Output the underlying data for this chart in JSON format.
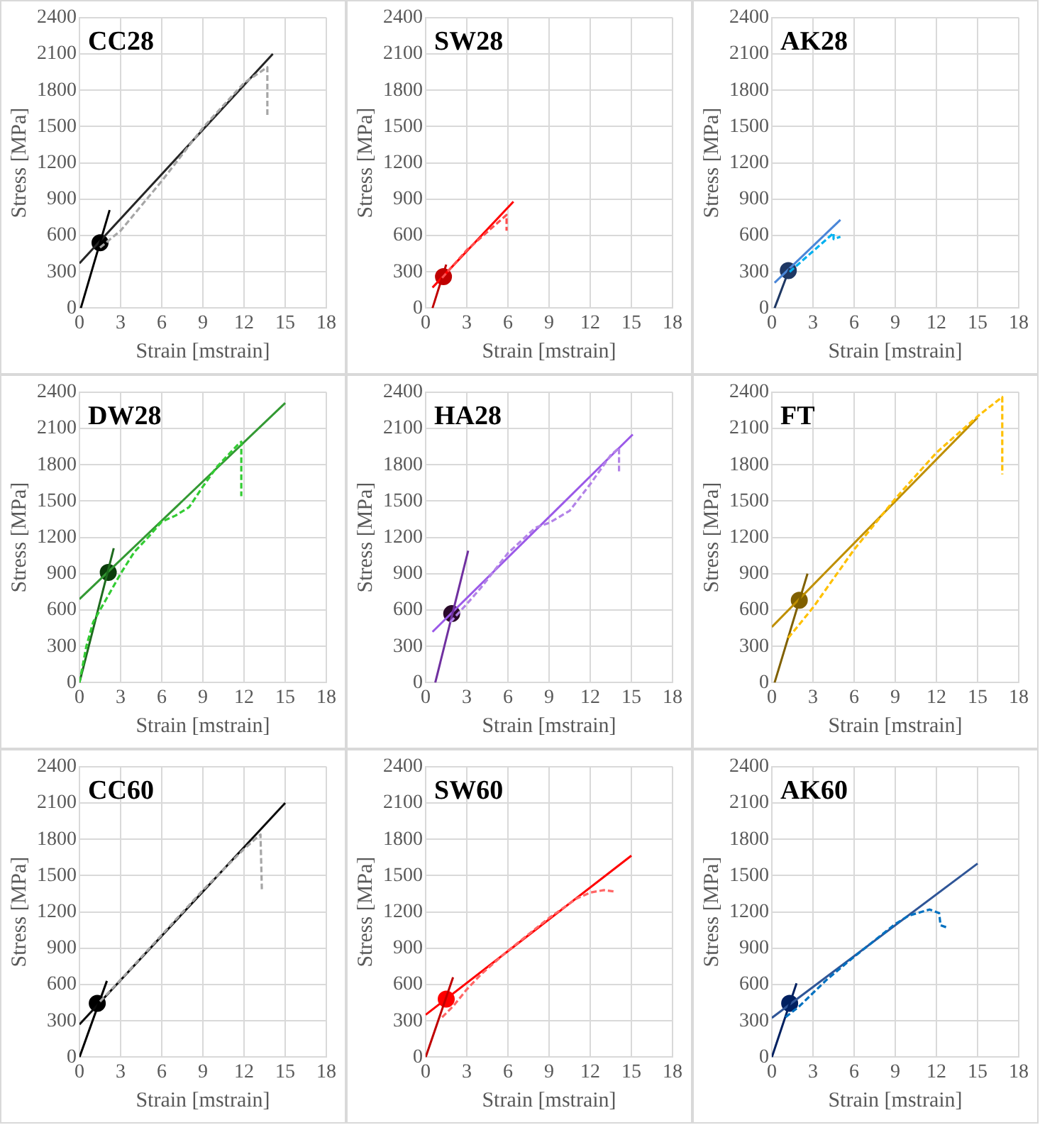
{
  "chart_data": [
    {
      "type": "line",
      "title": "CC28",
      "xlabel": "Strain [mstrain]",
      "ylabel": "Stress [MPa]",
      "xlim": [
        0,
        18
      ],
      "xticks": [
        0,
        3,
        6,
        9,
        12,
        15,
        18
      ],
      "ylim": [
        0,
        2400
      ],
      "yticks": [
        0,
        300,
        600,
        900,
        1200,
        1500,
        1800,
        2100,
        2400
      ],
      "grid": true,
      "legend": false,
      "series": [
        {
          "type": "line",
          "line_style": "dashed",
          "marker": "none",
          "color": "#a6a6a6",
          "x": [
            1.5,
            3,
            6,
            9,
            12,
            13.7,
            13.7
          ],
          "values": [
            500,
            640,
            1050,
            1490,
            1860,
            1990,
            1580
          ]
        },
        {
          "type": "line",
          "line_style": "solid",
          "marker": "none",
          "color": "#000000",
          "x": [
            0.1,
            2.2
          ],
          "values": [
            0,
            810
          ]
        },
        {
          "type": "line",
          "line_style": "solid",
          "marker": "none",
          "color": "#262626",
          "x": [
            0,
            14.1
          ],
          "values": [
            370,
            2100
          ]
        },
        {
          "type": "scatter",
          "marker": "circle",
          "color": "#000000",
          "x": [
            1.5
          ],
          "values": [
            540
          ]
        }
      ]
    },
    {
      "type": "line",
      "title": "SW28",
      "xlabel": "Strain [mstrain]",
      "ylabel": "Stress [MPa]",
      "xlim": [
        0,
        18
      ],
      "xticks": [
        0,
        3,
        6,
        9,
        12,
        15,
        18
      ],
      "ylim": [
        0,
        2400
      ],
      "yticks": [
        0,
        300,
        600,
        900,
        1200,
        1500,
        1800,
        2100,
        2400
      ],
      "grid": true,
      "legend": false,
      "series": [
        {
          "type": "line",
          "line_style": "dashed",
          "marker": "none",
          "color": "#ff5050",
          "x": [
            1.2,
            3,
            5.9,
            5.9
          ],
          "values": [
            250,
            480,
            770,
            640
          ]
        },
        {
          "type": "line",
          "line_style": "solid",
          "marker": "none",
          "color": "#c00000",
          "x": [
            0.5,
            1.5
          ],
          "values": [
            0,
            360
          ]
        },
        {
          "type": "line",
          "line_style": "solid",
          "marker": "none",
          "color": "#ff0000",
          "x": [
            0.5,
            6.4
          ],
          "values": [
            170,
            880
          ]
        },
        {
          "type": "scatter",
          "marker": "circle",
          "color": "#c00000",
          "x": [
            1.3
          ],
          "values": [
            260
          ]
        }
      ]
    },
    {
      "type": "line",
      "title": "AK28",
      "xlabel": "Strain [mstrain]",
      "ylabel": "Stress [MPa]",
      "xlim": [
        0,
        18
      ],
      "xticks": [
        0,
        3,
        6,
        9,
        12,
        15,
        18
      ],
      "ylim": [
        0,
        2400
      ],
      "yticks": [
        0,
        300,
        600,
        900,
        1200,
        1500,
        1800,
        2100,
        2400
      ],
      "grid": true,
      "legend": false,
      "series": [
        {
          "type": "line",
          "line_style": "dashed",
          "marker": "none",
          "color": "#00b0f0",
          "x": [
            1.3,
            3,
            4.5,
            4.5,
            5
          ],
          "values": [
            300,
            470,
            620,
            570,
            590
          ]
        },
        {
          "type": "line",
          "line_style": "solid",
          "marker": "none",
          "color": "#1f3864",
          "x": [
            0.2,
            1.3
          ],
          "values": [
            0,
            330
          ]
        },
        {
          "type": "line",
          "line_style": "solid",
          "marker": "none",
          "color": "#4a86d8",
          "x": [
            0.2,
            5
          ],
          "values": [
            210,
            730
          ]
        },
        {
          "type": "scatter",
          "marker": "circle",
          "color": "#1f3864",
          "x": [
            1.2
          ],
          "values": [
            310
          ]
        }
      ]
    },
    {
      "type": "line",
      "title": "DW28",
      "xlabel": "Strain [mstrain]",
      "ylabel": "Stress [MPa]",
      "xlim": [
        0,
        18
      ],
      "xticks": [
        0,
        3,
        6,
        9,
        12,
        15,
        18
      ],
      "ylim": [
        0,
        2400
      ],
      "yticks": [
        0,
        300,
        600,
        900,
        1200,
        1500,
        1800,
        2100,
        2400
      ],
      "grid": true,
      "legend": false,
      "series": [
        {
          "type": "line",
          "line_style": "dashed",
          "marker": "none",
          "color": "#33cc33",
          "x": [
            0,
            0.5,
            1,
            2,
            3,
            4,
            5,
            6,
            7,
            8,
            9,
            10,
            11.5,
            11.8,
            11.8
          ],
          "values": [
            0,
            300,
            500,
            700,
            900,
            1080,
            1200,
            1330,
            1380,
            1450,
            1620,
            1780,
            1960,
            1990,
            1540
          ]
        },
        {
          "type": "line",
          "line_style": "solid",
          "marker": "none",
          "color": "#1e6b1e",
          "x": [
            0,
            2.5
          ],
          "values": [
            0,
            1110
          ]
        },
        {
          "type": "line",
          "line_style": "solid",
          "marker": "none",
          "color": "#339933",
          "x": [
            0,
            15
          ],
          "values": [
            690,
            2310
          ]
        },
        {
          "type": "scatter",
          "marker": "circle",
          "color": "#0b3d0b",
          "x": [
            2.1
          ],
          "values": [
            910
          ]
        }
      ]
    },
    {
      "type": "line",
      "title": "HA28",
      "xlabel": "Strain [mstrain]",
      "ylabel": "Stress [MPa]",
      "xlim": [
        0,
        18
      ],
      "xticks": [
        0,
        3,
        6,
        9,
        12,
        15,
        18
      ],
      "ylim": [
        0,
        2400
      ],
      "yticks": [
        0,
        300,
        600,
        900,
        1200,
        1500,
        1800,
        2100,
        2400
      ],
      "grid": true,
      "legend": false,
      "series": [
        {
          "type": "line",
          "line_style": "dashed",
          "marker": "none",
          "color": "#b383e8",
          "x": [
            1.8,
            3,
            4,
            6,
            8,
            9,
            10.5,
            12,
            13.5,
            14.1,
            14.1
          ],
          "values": [
            500,
            650,
            780,
            1070,
            1280,
            1320,
            1420,
            1640,
            1880,
            1940,
            1740
          ]
        },
        {
          "type": "line",
          "line_style": "solid",
          "marker": "none",
          "color": "#7030a0",
          "x": [
            0.7,
            3.1
          ],
          "values": [
            0,
            1090
          ]
        },
        {
          "type": "line",
          "line_style": "solid",
          "marker": "none",
          "color": "#9b59e8",
          "x": [
            0.5,
            15.1
          ],
          "values": [
            420,
            2050
          ]
        },
        {
          "type": "scatter",
          "marker": "circle",
          "color": "#2b0a2b",
          "x": [
            1.9
          ],
          "values": [
            570
          ]
        }
      ]
    },
    {
      "type": "line",
      "title": "FT",
      "xlabel": "Strain [mstrain]",
      "ylabel": "Stress [MPa]",
      "xlim": [
        0,
        18
      ],
      "xticks": [
        0,
        3,
        6,
        9,
        12,
        15,
        18
      ],
      "ylim": [
        0,
        2400
      ],
      "yticks": [
        0,
        300,
        600,
        900,
        1200,
        1500,
        1800,
        2100,
        2400
      ],
      "grid": true,
      "legend": false,
      "series": [
        {
          "type": "line",
          "line_style": "dashed",
          "marker": "none",
          "color": "#ffc000",
          "x": [
            1.2,
            3,
            6,
            9,
            12,
            15,
            16.8,
            16.8
          ],
          "values": [
            370,
            620,
            1100,
            1520,
            1900,
            2200,
            2360,
            1720
          ]
        },
        {
          "type": "line",
          "line_style": "solid",
          "marker": "none",
          "color": "#806000",
          "x": [
            0.2,
            2.6
          ],
          "values": [
            0,
            900
          ]
        },
        {
          "type": "line",
          "line_style": "solid",
          "marker": "none",
          "color": "#bf8f00",
          "x": [
            0,
            15
          ],
          "values": [
            460,
            2190
          ]
        },
        {
          "type": "scatter",
          "marker": "circle",
          "color": "#806000",
          "x": [
            2
          ],
          "values": [
            680
          ]
        }
      ]
    },
    {
      "type": "line",
      "title": "CC60",
      "xlabel": "Strain [mstrain]",
      "ylabel": "Stress [MPa]",
      "xlim": [
        0,
        18
      ],
      "xticks": [
        0,
        3,
        6,
        9,
        12,
        15,
        18
      ],
      "ylim": [
        0,
        2400
      ],
      "yticks": [
        0,
        300,
        600,
        900,
        1200,
        1500,
        1800,
        2100,
        2400
      ],
      "grid": true,
      "legend": false,
      "series": [
        {
          "type": "line",
          "line_style": "dashed",
          "marker": "none",
          "color": "#a6a6a6",
          "x": [
            1.5,
            3,
            6,
            9,
            12,
            13.2,
            13.3
          ],
          "values": [
            460,
            640,
            1010,
            1380,
            1720,
            1840,
            1380
          ]
        },
        {
          "type": "line",
          "line_style": "solid",
          "marker": "none",
          "color": "#000000",
          "x": [
            0,
            2
          ],
          "values": [
            0,
            630
          ]
        },
        {
          "type": "line",
          "line_style": "solid",
          "marker": "none",
          "color": "#0d0d0d",
          "x": [
            0,
            15
          ],
          "values": [
            270,
            2100
          ]
        },
        {
          "type": "scatter",
          "marker": "circle",
          "color": "#000000",
          "x": [
            1.3
          ],
          "values": [
            445
          ]
        }
      ]
    },
    {
      "type": "line",
      "title": "SW60",
      "xlabel": "Strain [mstrain]",
      "ylabel": "Stress [MPa]",
      "xlim": [
        0,
        18
      ],
      "xticks": [
        0,
        3,
        6,
        9,
        12,
        15,
        18
      ],
      "ylim": [
        0,
        2400
      ],
      "yticks": [
        0,
        300,
        600,
        900,
        1200,
        1500,
        1800,
        2100,
        2400
      ],
      "grid": true,
      "legend": false,
      "series": [
        {
          "type": "line",
          "line_style": "dashed",
          "marker": "none",
          "color": "#ff6666",
          "x": [
            1.2,
            2,
            3,
            4,
            6,
            9,
            11,
            12,
            13,
            13.7
          ],
          "values": [
            330,
            420,
            560,
            680,
            880,
            1150,
            1310,
            1360,
            1380,
            1370
          ]
        },
        {
          "type": "line",
          "line_style": "solid",
          "marker": "none",
          "color": "#c00000",
          "x": [
            0,
            2
          ],
          "values": [
            0,
            660
          ]
        },
        {
          "type": "line",
          "line_style": "solid",
          "marker": "none",
          "color": "#ff0000",
          "x": [
            0,
            15
          ],
          "values": [
            350,
            1665
          ]
        },
        {
          "type": "scatter",
          "marker": "circle",
          "color": "#ff0000",
          "x": [
            1.5
          ],
          "values": [
            480
          ]
        }
      ]
    },
    {
      "type": "line",
      "title": "AK60",
      "xlabel": "Strain [mstrain]",
      "ylabel": "Stress [MPa]",
      "xlim": [
        0,
        18
      ],
      "xticks": [
        0,
        3,
        6,
        9,
        12,
        15,
        18
      ],
      "ylim": [
        0,
        2400
      ],
      "yticks": [
        0,
        300,
        600,
        900,
        1200,
        1500,
        1800,
        2100,
        2400
      ],
      "grid": true,
      "legend": false,
      "series": [
        {
          "type": "line",
          "line_style": "dashed",
          "marker": "none",
          "color": "#0070c0",
          "x": [
            1,
            2,
            3,
            4,
            6,
            9,
            10,
            11.5,
            12.2,
            12.3,
            12.8
          ],
          "values": [
            330,
            420,
            530,
            640,
            830,
            1100,
            1170,
            1220,
            1190,
            1090,
            1070
          ]
        },
        {
          "type": "line",
          "line_style": "solid",
          "marker": "none",
          "color": "#002060",
          "x": [
            0,
            1.8
          ],
          "values": [
            0,
            610
          ]
        },
        {
          "type": "line",
          "line_style": "solid",
          "marker": "none",
          "color": "#2f5597",
          "x": [
            0,
            15
          ],
          "values": [
            325,
            1600
          ]
        },
        {
          "type": "scatter",
          "marker": "circle",
          "color": "#002060",
          "x": [
            1.3
          ],
          "values": [
            445
          ]
        }
      ]
    }
  ]
}
